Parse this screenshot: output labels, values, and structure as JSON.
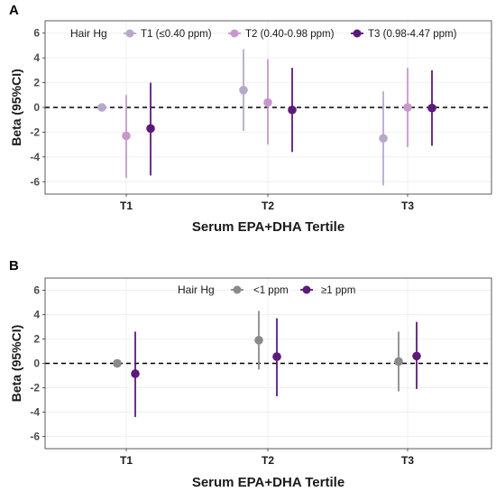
{
  "chart_data": [
    {
      "type": "scatter",
      "panel_label": "A",
      "xlabel": "Serum EPA+DHA Tertile",
      "ylabel": "Beta (95%CI)",
      "categories": [
        "T1",
        "T2",
        "T3"
      ],
      "ylim": [
        -7,
        7
      ],
      "yticks": [
        -6,
        -4,
        -2,
        0,
        2,
        4,
        6
      ],
      "reference_line": 0,
      "legend": {
        "title": "Hair Hg",
        "placement": "top"
      },
      "series": [
        {
          "name": "T1 (≤0.40 ppm)",
          "color": "#b8a9c9",
          "estimates": [
            0.0,
            1.4,
            -2.5
          ],
          "lower": [
            null,
            -1.9,
            -6.3
          ],
          "upper": [
            null,
            4.7,
            1.3
          ]
        },
        {
          "name": "T2 (0.40-0.98 ppm)",
          "color": "#c897cc",
          "estimates": [
            -2.3,
            0.4,
            0.0
          ],
          "lower": [
            -5.7,
            -3.0,
            -3.2
          ],
          "upper": [
            1.0,
            3.9,
            3.2
          ]
        },
        {
          "name": "T3 (0.98-4.47 ppm)",
          "color": "#5c1a7a",
          "estimates": [
            -1.7,
            -0.2,
            -0.05
          ],
          "lower": [
            -5.5,
            -3.6,
            -3.1
          ],
          "upper": [
            2.0,
            3.2,
            3.0
          ]
        }
      ]
    },
    {
      "type": "scatter",
      "panel_label": "B",
      "xlabel": "Serum EPA+DHA Tertile",
      "ylabel": "Beta (95%CI)",
      "categories": [
        "T1",
        "T2",
        "T3"
      ],
      "ylim": [
        -7,
        7
      ],
      "yticks": [
        -6,
        -4,
        -2,
        0,
        2,
        4,
        6
      ],
      "reference_line": 0,
      "legend": {
        "title": "Hair Hg",
        "placement": "top"
      },
      "series": [
        {
          "name": "<1 ppm",
          "color": "#8a8a8a",
          "estimates": [
            0.0,
            1.9,
            0.15
          ],
          "lower": [
            null,
            -0.5,
            -2.3
          ],
          "upper": [
            null,
            4.3,
            2.6
          ]
        },
        {
          "name": "≥1 ppm",
          "color": "#5c1a7a",
          "estimates": [
            -0.85,
            0.55,
            0.6
          ],
          "lower": [
            -4.4,
            -2.7,
            -2.1
          ],
          "upper": [
            2.6,
            3.7,
            3.4
          ]
        }
      ]
    }
  ]
}
